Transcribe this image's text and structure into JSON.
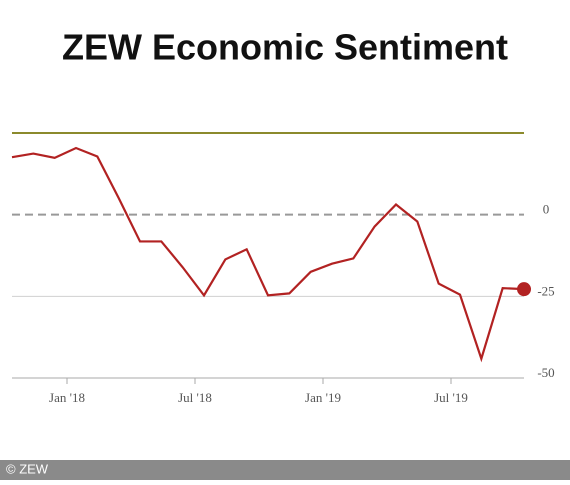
{
  "chart_data": {
    "type": "line",
    "title": "ZEW Economic Sentiment",
    "categories": [
      null,
      null,
      null,
      "Jan '18",
      null,
      null,
      null,
      null,
      null,
      "Jul '18",
      null,
      null,
      null,
      null,
      null,
      "Jan '19",
      null,
      null,
      null,
      null,
      null,
      "Jul '19",
      null,
      null,
      null
    ],
    "series": [
      {
        "name": "ZEW Economic Sentiment",
        "color": "#b22222",
        "values": [
          17.6,
          18.7,
          17.4,
          20.4,
          17.8,
          5.1,
          -8.2,
          -8.2,
          -16.1,
          -24.7,
          -13.7,
          -10.6,
          -24.7,
          -24.1,
          -17.5,
          -15.0,
          -13.4,
          -3.6,
          3.1,
          -2.1,
          -21.1,
          -24.5,
          -44.1,
          -22.5,
          -22.8
        ]
      }
    ],
    "ylim": [
      -50,
      25
    ],
    "yticks": [
      0,
      -25,
      -50
    ],
    "grid": true,
    "credit": "© ZEW"
  }
}
